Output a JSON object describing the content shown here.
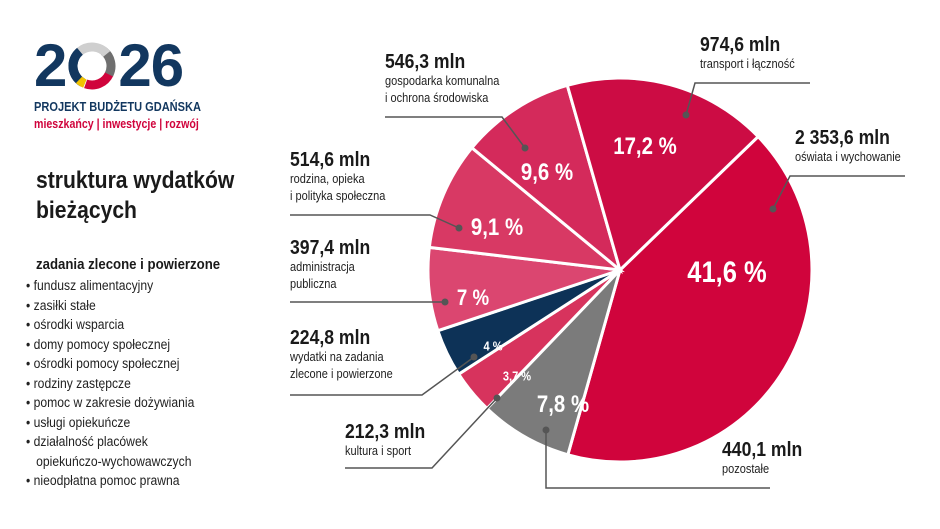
{
  "logo": {
    "year_left": "2",
    "year_right": "26",
    "name": "PROJEKT BUDŻETU GDAŃSKA",
    "tagline": "mieszkańcy | inwestycje | rozwój"
  },
  "title_lines": [
    "struktura wydatków",
    "bieżących"
  ],
  "subtitle": "zadania zlecone i powierzone",
  "list": [
    "fundusz alimentacyjny",
    "zasiłki stałe",
    "ośrodki wsparcia",
    "domy pomocy społecznej",
    "ośrodki pomocy społecznej",
    "rodziny zastępcze",
    "pomoc w zakresie dożywiania",
    "usługi opiekuńcze",
    "działalność placówek",
    "opiekuńczo-wychowawczych",
    "nieodpłatna pomoc prawna"
  ],
  "chart_data": {
    "type": "pie",
    "slices": [
      {
        "label": "oświata i wychowanie",
        "amount": "2 353,6 mln",
        "percent": 41.6,
        "percent_label": "41,6 %",
        "color": "#d0043c"
      },
      {
        "label": "pozostałe",
        "amount": "440,1 mln",
        "percent": 7.8,
        "percent_label": "7,8 %",
        "color": "#7b7b7b"
      },
      {
        "label": "kultura i sport",
        "amount": "212,3 mln",
        "percent": 3.7,
        "percent_label": "3,7 %",
        "color": "#d7335d"
      },
      {
        "label": "wydatki na zadania zlecone i powierzone",
        "amount": "224,8 mln",
        "percent": 4,
        "percent_label": "4 %",
        "color": "#0d3257"
      },
      {
        "label": "administracja publiczna",
        "amount": "397,4 mln",
        "percent": 7,
        "percent_label": "7 %",
        "color": "#db4670"
      },
      {
        "label": "rodzina, opieka i polityka społeczna",
        "amount": "514,6 mln",
        "percent": 9.1,
        "percent_label": "9,1 %",
        "color": "#d83964"
      },
      {
        "label": "gospodarka komunalna i ochrona środowiska",
        "amount": "546,3 mln",
        "percent": 9.6,
        "percent_label": "9,6 %",
        "color": "#d42a5b"
      },
      {
        "label": "transport i łączność",
        "amount": "974,6 mln",
        "percent": 17.2,
        "percent_label": "17,2 %",
        "color": "#cc0c44"
      }
    ],
    "desc_lines": [
      [
        "oświata i wychowanie"
      ],
      [
        "pozostałe"
      ],
      [
        "kultura i sport"
      ],
      [
        "wydatki na zadania",
        "zlecone i powierzone"
      ],
      [
        "administracja",
        "publiczna"
      ],
      [
        "rodzina, opieka",
        "i polityka społeczna"
      ],
      [
        "gospodarka komunalna",
        "i ochrona środowiska"
      ],
      [
        "transport i łączność"
      ]
    ]
  }
}
